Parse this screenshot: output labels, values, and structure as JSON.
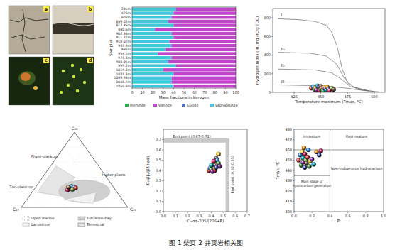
{
  "caption": "图 1 柴页 2 井页岩相关图",
  "photos": {
    "labels": [
      "a",
      "b",
      "c",
      "d"
    ]
  },
  "chart_data": [
    {
      "type": "bar",
      "orientation": "horizontal",
      "stacked": true,
      "legend": "bottom",
      "xlabel": "Mass fractions in kerogen",
      "ylabel": "Samples",
      "categories": [
        "245m",
        "476m",
        "603m",
        "659.02m",
        "812.45m",
        "840.6m",
        "902.56m",
        "911.27m",
        "918.07m",
        "933.9m",
        "936m",
        "954.1m",
        "978.3m",
        "988.05m",
        "999.2m",
        "1019.3m",
        "1035.3m",
        "1039.95m",
        "1046.7m",
        "1050.8m"
      ],
      "series": [
        {
          "name": "Inertinite",
          "color": "#22b14c",
          "values": [
            0,
            0,
            0,
            0,
            0,
            0,
            0,
            0,
            0,
            0,
            0,
            0,
            0,
            0,
            0,
            0,
            0,
            0,
            0,
            0
          ]
        },
        {
          "name": "Vitrinite",
          "color": "#c046c8",
          "values": [
            58,
            60,
            62,
            65,
            60,
            78,
            62,
            60,
            64,
            62,
            68,
            75,
            62,
            65,
            58,
            70,
            60,
            62,
            62,
            60
          ]
        },
        {
          "name": "Exinite",
          "color": "#4a6fc4",
          "values": [
            0,
            0,
            0,
            0,
            0,
            0,
            0,
            0,
            0,
            0,
            0,
            0,
            0,
            0,
            0,
            0,
            0,
            0,
            0,
            0
          ]
        },
        {
          "name": "Sapropelinite",
          "color": "#3ec8d8",
          "values": [
            42,
            40,
            38,
            35,
            40,
            22,
            38,
            40,
            36,
            38,
            32,
            25,
            38,
            35,
            42,
            30,
            40,
            38,
            38,
            40
          ]
        }
      ],
      "xlim": [
        0,
        100
      ],
      "xticks": [
        0,
        10,
        20,
        30,
        40,
        50,
        60,
        70,
        80,
        90,
        100
      ]
    },
    {
      "type": "scatter",
      "marker": "sphere",
      "xlabel": "Temperature maximum (Tmax, ℃)",
      "ylabel": "Hydrogen Index (HI, mg HC/g TOC)",
      "xlim": [
        405,
        510
      ],
      "xticks": [
        425,
        450,
        475,
        500
      ],
      "ylim": [
        0,
        900
      ],
      "yticks": [
        0,
        200,
        400,
        600,
        800
      ],
      "curves": [
        {
          "name": "I",
          "x": [
            410,
            430,
            445,
            455,
            460,
            465,
            470,
            475,
            485,
            500
          ],
          "y": [
            790,
            780,
            760,
            720,
            650,
            500,
            250,
            100,
            30,
            10
          ]
        },
        {
          "name": "II₁",
          "x": [
            410,
            440,
            455,
            465,
            472,
            480,
            495
          ],
          "y": [
            430,
            420,
            390,
            300,
            150,
            60,
            15
          ]
        },
        {
          "name": "II₂",
          "x": [
            410,
            445,
            460,
            468,
            478,
            495
          ],
          "y": [
            250,
            240,
            210,
            150,
            60,
            15
          ]
        },
        {
          "name": "III",
          "x": [
            410,
            450,
            470,
            490,
            505
          ],
          "y": [
            80,
            70,
            50,
            20,
            5
          ]
        }
      ],
      "x": [
        441,
        443,
        444,
        445,
        446,
        447,
        448,
        448,
        449,
        450,
        450,
        451,
        452,
        452,
        453,
        454,
        455,
        456,
        457,
        458,
        460,
        462
      ],
      "values": [
        45,
        60,
        30,
        50,
        25,
        70,
        40,
        55,
        20,
        35,
        65,
        45,
        30,
        15,
        50,
        40,
        25,
        55,
        35,
        20,
        45,
        30
      ],
      "colors": [
        "#e53935",
        "#1e88e5",
        "#43a047",
        "#fdd835",
        "#8e24aa",
        "#00acc1",
        "#fb8c00",
        "#3949ab",
        "#d81b60",
        "#7cb342",
        "#6d4c41",
        "#e53935",
        "#1e88e5",
        "#43a047",
        "#fdd835",
        "#8e24aa",
        "#00acc1",
        "#fb8c00",
        "#3949ab",
        "#d81b60",
        "#7cb342",
        "#6d4c41"
      ]
    },
    {
      "type": "ternary",
      "marker": "sphere",
      "vertex_labels": [
        "C₂₈",
        "C₂₇",
        "C₂₉"
      ],
      "region_labels": [
        "Phyto-plankton",
        "Zoo-plankton",
        "Higher-plants"
      ],
      "legend_items": [
        "Open marine",
        "Estuarine-bay",
        "Lacustrine",
        "Terrestrial"
      ],
      "values": [
        [
          25,
          42,
          33
        ],
        [
          27,
          40,
          33
        ],
        [
          26,
          38,
          36
        ],
        [
          24,
          44,
          32
        ],
        [
          25,
          41,
          34
        ],
        [
          28,
          39,
          33
        ],
        [
          26,
          43,
          31
        ],
        [
          27,
          37,
          36
        ],
        [
          23,
          45,
          32
        ],
        [
          24,
          40,
          36
        ],
        [
          27,
          42,
          31
        ],
        [
          26,
          36,
          38
        ]
      ],
      "colors": [
        "#e53935",
        "#1e88e5",
        "#43a047",
        "#fdd835",
        "#8e24aa",
        "#00acc1",
        "#fb8c00",
        "#3949ab",
        "#d81b60",
        "#7cb342",
        "#6d4c41",
        "#e53935"
      ]
    },
    {
      "type": "scatter",
      "marker": "sphere",
      "xlabel": "C₂₉αα-20S/(20S+R)",
      "ylabel": "C₂₉ββ/(ββ+αα)",
      "xlim": [
        0,
        0.7
      ],
      "xticks": [
        {
          "value": 0,
          "label": "0.0"
        },
        0.1,
        0.2,
        0.3,
        0.4,
        0.5,
        0.6,
        0.7
      ],
      "ylim": [
        0,
        0.8
      ],
      "yticks": [
        {
          "value": 0,
          "label": "0.0"
        },
        0.1,
        0.2,
        0.3,
        0.4,
        0.5,
        0.6,
        0.7
      ],
      "bands": [
        {
          "axis": "y",
          "from": 0.67,
          "to": 0.71,
          "label": "End point (0.67-0.71)"
        },
        {
          "axis": "x",
          "from": 0.52,
          "to": 0.55,
          "label": "End point (0.52-0.55)"
        }
      ],
      "x": [
        0.38,
        0.39,
        0.4,
        0.41,
        0.41,
        0.42,
        0.42,
        0.43,
        0.43,
        0.44,
        0.44,
        0.45,
        0.45,
        0.46,
        0.46,
        0.47,
        0.4,
        0.43,
        0.44,
        0.42
      ],
      "values": [
        0.4,
        0.42,
        0.41,
        0.44,
        0.39,
        0.43,
        0.47,
        0.45,
        0.4,
        0.48,
        0.52,
        0.46,
        0.5,
        0.47,
        0.56,
        0.44,
        0.45,
        0.42,
        0.43,
        0.49
      ],
      "colors": [
        "#e53935",
        "#1e88e5",
        "#43a047",
        "#fdd835",
        "#8e24aa",
        "#00acc1",
        "#fb8c00",
        "#3949ab",
        "#d81b60",
        "#7cb342",
        "#6d4c41",
        "#e53935",
        "#1e88e5",
        "#43a047",
        "#fdd835",
        "#8e24aa",
        "#00acc1",
        "#fb8c00",
        "#3949ab",
        "#d81b60"
      ]
    },
    {
      "type": "scatter",
      "marker": "sphere",
      "xlabel": "PI",
      "ylabel": "Tmax, ℃",
      "xlim": [
        0,
        1
      ],
      "xticks": [
        {
          "value": 0,
          "label": "0.0"
        },
        0.2,
        0.4,
        0.6,
        0.8,
        {
          "value": 1,
          "label": "1.0"
        }
      ],
      "ylim": [
        400,
        480
      ],
      "yticks": [
        400,
        410,
        420,
        430,
        440,
        450,
        460,
        470,
        480
      ],
      "lines": [
        {
          "x": [
            0.4,
            0.4
          ],
          "y": [
            400,
            480
          ]
        },
        {
          "x": [
            0,
            1
          ],
          "y": [
            460,
            460
          ]
        },
        {
          "x": [
            0,
            0.4
          ],
          "y": [
            435,
            435
          ]
        }
      ],
      "annotations": [
        {
          "text": [
            "Immature"
          ],
          "x": 0.2,
          "y": 472
        },
        {
          "text": [
            "Post-mature"
          ],
          "x": 0.7,
          "y": 472
        },
        {
          "text": [
            "Main stage of",
            "hydrocarbon generation"
          ],
          "x": 0.2,
          "y": 426
        },
        {
          "text": [
            "Non-indigenous hydrocarbon"
          ],
          "x": 0.7,
          "y": 441
        }
      ],
      "x": [
        0.05,
        0.07,
        0.08,
        0.09,
        0.1,
        0.1,
        0.11,
        0.12,
        0.12,
        0.13,
        0.14,
        0.15,
        0.16,
        0.17,
        0.18,
        0.2,
        0.22,
        0.25,
        0.28,
        0.3
      ],
      "values": [
        450,
        455,
        445,
        458,
        448,
        452,
        462,
        443,
        456,
        450,
        447,
        453,
        460,
        444,
        449,
        451,
        446,
        458,
        455,
        459
      ],
      "colors": [
        "#e53935",
        "#1e88e5",
        "#43a047",
        "#fdd835",
        "#8e24aa",
        "#00acc1",
        "#fb8c00",
        "#3949ab",
        "#d81b60",
        "#7cb342",
        "#6d4c41",
        "#e53935",
        "#1e88e5",
        "#43a047",
        "#fdd835",
        "#8e24aa",
        "#00acc1",
        "#fb8c00",
        "#3949ab",
        "#d81b60"
      ]
    }
  ]
}
